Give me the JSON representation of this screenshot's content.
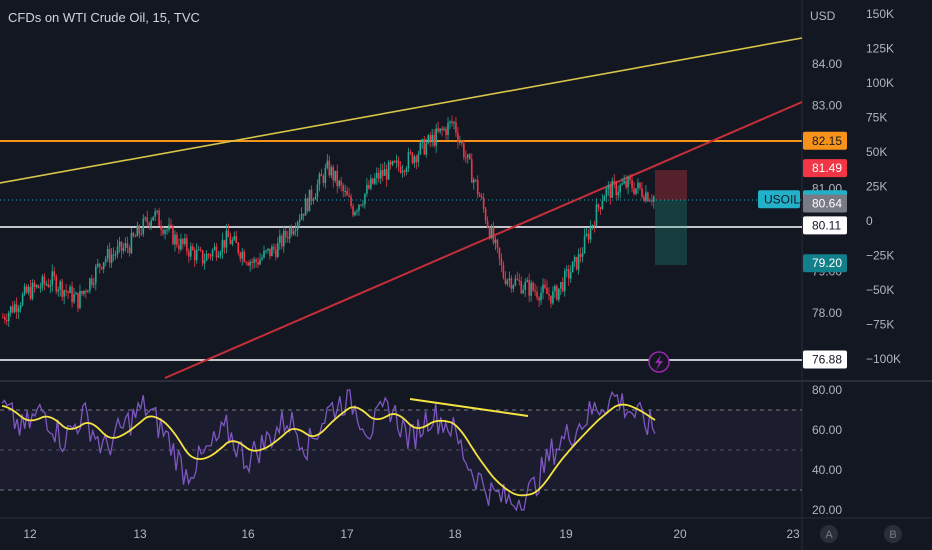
{
  "header": {
    "title": "CFDs on WTI Crude Oil, 15, TVC"
  },
  "price_axis": {
    "currency": "USD",
    "ticks": [
      "84.00",
      "83.00",
      "81.00",
      "79.00",
      "78.00"
    ],
    "tick_values": [
      84,
      83,
      81,
      79,
      78
    ]
  },
  "volume_axis": {
    "ticks": [
      "150K",
      "125K",
      "100K",
      "75K",
      "50K",
      "25K",
      "0",
      "−25K",
      "−50K",
      "−75K",
      "−100K"
    ],
    "tick_values": [
      150000,
      125000,
      100000,
      75000,
      50000,
      25000,
      0,
      -25000,
      -50000,
      -75000,
      -100000
    ]
  },
  "price_badges": [
    {
      "label": "82.15",
      "value": 82.15,
      "color": "#f7931a",
      "text_color": "#131722"
    },
    {
      "label": "81.49",
      "value": 81.49,
      "color": "#f23645",
      "text_color": "#ffffff"
    },
    {
      "label": "80.74",
      "value": 80.74,
      "color": "#22b1c9",
      "text_color": "#131722"
    },
    {
      "label": "80.64",
      "value": 80.64,
      "color": "#787b86",
      "text_color": "#ffffff"
    },
    {
      "label": "80.11",
      "value": 80.11,
      "color": "#ffffff",
      "text_color": "#131722"
    },
    {
      "label": "79.20",
      "value": 79.2,
      "color": "#12808b",
      "text_color": "#ffffff"
    },
    {
      "label": "76.88",
      "value": 76.88,
      "color": "#ffffff",
      "text_color": "#131722"
    }
  ],
  "symbol_badge": {
    "label": "USOIL",
    "color": "#22b1c9"
  },
  "rsi_axis": {
    "ticks": [
      "80.00",
      "60.00",
      "40.00",
      "20.00"
    ],
    "tick_values": [
      80,
      60,
      40,
      20
    ]
  },
  "time_axis": {
    "ticks": [
      "12",
      "13",
      "16",
      "17",
      "18",
      "19",
      "20",
      "23"
    ]
  },
  "scale_buttons": [
    "A",
    "B"
  ],
  "colors": {
    "background": "#131722",
    "up": "#22ab94",
    "down": "#f23645",
    "rsi": "#7e57c2",
    "rsi_ma": "#f5e342",
    "resistance": "#f7931a",
    "trend_red": "#c62f39",
    "trend_yellow": "#d9c44a"
  },
  "chart_data": [
    {
      "type": "candlestick",
      "title": "CFDs on WTI Crude Oil, 15, TVC",
      "ylabel": "USD",
      "ylim": [
        76.9,
        85.0
      ],
      "series": [
        {
          "name": "USOIL",
          "values": [
            77.9,
            78.5,
            78.8,
            78.3,
            79.3,
            79.6,
            80.4,
            79.7,
            79.3,
            79.8,
            79.2,
            79.6,
            80.5,
            81.5,
            80.5,
            81.3,
            81.6,
            82.1,
            82.6,
            80.9,
            78.9,
            78.6,
            78.4,
            79.3,
            80.9,
            81.1,
            80.8
          ]
        }
      ],
      "levels": [
        82.15,
        80.64,
        80.11,
        76.88
      ],
      "last": 80.74,
      "position": {
        "entry": 80.74,
        "stop": 81.49,
        "target": 79.2
      }
    },
    {
      "type": "line",
      "series": [
        {
          "values": [
            72,
            60,
            70,
            55,
            68,
            50,
            62,
            72,
            58,
            38,
            48,
            60,
            45,
            55,
            66,
            52,
            70,
            76,
            60,
            72,
            55,
            68,
            62,
            40,
            28,
            24,
            30,
            50,
            60,
            70,
            77,
            68,
            60
          ]
        }
      ],
      "ylim": [
        16,
        85
      ],
      "levels": [
        70,
        50,
        30
      ]
    }
  ]
}
